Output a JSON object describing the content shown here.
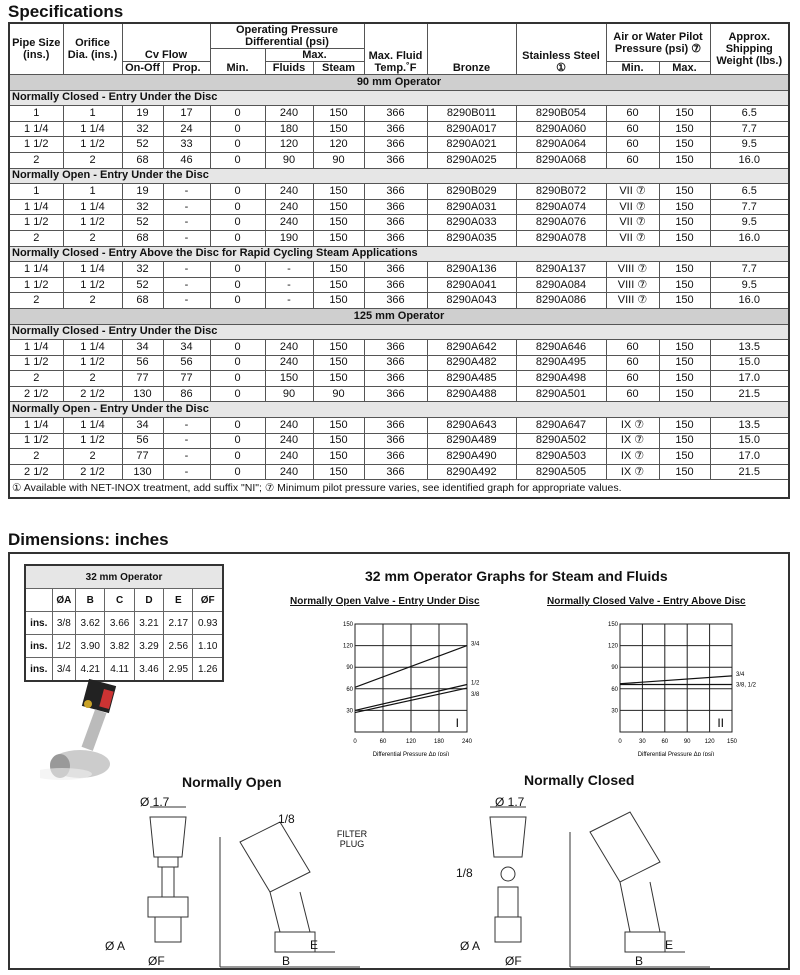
{
  "spec": {
    "title": "Specifications",
    "headers": {
      "pipe": "Pipe Size (ins.)",
      "orifice": "Orifice Dia. (ins.)",
      "cv": "Cv Flow",
      "onoff": "On-Off",
      "prop": "Prop.",
      "opd": "Operating Pressure Differential (psi)",
      "max": "Max.",
      "min": "Min.",
      "fluids": "Fluids",
      "steam": "Steam",
      "temp": "Max. Fluid Temp.˚F",
      "bronze": "Bronze",
      "ss": "Stainless Steel ①",
      "pilot": "Air or Water Pilot Pressure (psi) ⑦",
      "pmin": "Min.",
      "pmax": "Max.",
      "weight": "Approx. Shipping Weight (lbs.)"
    },
    "groups": [
      {
        "operator": "90 mm Operator",
        "section": "Normally Closed - Entry Under the Disc",
        "rows": [
          [
            "1",
            "1",
            "19",
            "17",
            "0",
            "240",
            "150",
            "366",
            "8290B011",
            "8290B054",
            "60",
            "150",
            "6.5"
          ],
          [
            "1 1/4",
            "1 1/4",
            "32",
            "24",
            "0",
            "180",
            "150",
            "366",
            "8290A017",
            "8290A060",
            "60",
            "150",
            "7.7"
          ],
          [
            "1 1/2",
            "1 1/2",
            "52",
            "33",
            "0",
            "120",
            "120",
            "366",
            "8290A021",
            "8290A064",
            "60",
            "150",
            "9.5"
          ],
          [
            "2",
            "2",
            "68",
            "46",
            "0",
            "90",
            "90",
            "366",
            "8290A025",
            "8290A068",
            "60",
            "150",
            "16.0"
          ]
        ]
      },
      {
        "section": "Normally Open - Entry Under the Disc",
        "rows": [
          [
            "1",
            "1",
            "19",
            "-",
            "0",
            "240",
            "150",
            "366",
            "8290B029",
            "8290B072",
            "VII ⑦",
            "150",
            "6.5"
          ],
          [
            "1 1/4",
            "1 1/4",
            "32",
            "-",
            "0",
            "240",
            "150",
            "366",
            "8290A031",
            "8290A074",
            "VII ⑦",
            "150",
            "7.7"
          ],
          [
            "1 1/2",
            "1 1/2",
            "52",
            "-",
            "0",
            "240",
            "150",
            "366",
            "8290A033",
            "8290A076",
            "VII ⑦",
            "150",
            "9.5"
          ],
          [
            "2",
            "2",
            "68",
            "-",
            "0",
            "190",
            "150",
            "366",
            "8290A035",
            "8290A078",
            "VII ⑦",
            "150",
            "16.0"
          ]
        ]
      },
      {
        "section": "Normally Closed - Entry Above the Disc for Rapid Cycling Steam Applications",
        "rows": [
          [
            "1 1/4",
            "1 1/4",
            "32",
            "-",
            "0",
            "-",
            "150",
            "366",
            "8290A136",
            "8290A137",
            "VIII ⑦",
            "150",
            "7.7"
          ],
          [
            "1 1/2",
            "1 1/2",
            "52",
            "-",
            "0",
            "-",
            "150",
            "366",
            "8290A041",
            "8290A084",
            "VIII ⑦",
            "150",
            "9.5"
          ],
          [
            "2",
            "2",
            "68",
            "-",
            "0",
            "-",
            "150",
            "366",
            "8290A043",
            "8290A086",
            "VIII ⑦",
            "150",
            "16.0"
          ]
        ]
      },
      {
        "operator": "125 mm Operator",
        "section": "Normally Closed - Entry Under the Disc",
        "rows": [
          [
            "1 1/4",
            "1 1/4",
            "34",
            "34",
            "0",
            "240",
            "150",
            "366",
            "8290A642",
            "8290A646",
            "60",
            "150",
            "13.5"
          ],
          [
            "1 1/2",
            "1 1/2",
            "56",
            "56",
            "0",
            "240",
            "150",
            "366",
            "8290A482",
            "8290A495",
            "60",
            "150",
            "15.0"
          ],
          [
            "2",
            "2",
            "77",
            "77",
            "0",
            "150",
            "150",
            "366",
            "8290A485",
            "8290A498",
            "60",
            "150",
            "17.0"
          ],
          [
            "2 1/2",
            "2 1/2",
            "130",
            "86",
            "0",
            "90",
            "90",
            "366",
            "8290A488",
            "8290A501",
            "60",
            "150",
            "21.5"
          ]
        ]
      },
      {
        "section": "Normally Open - Entry Under the Disc",
        "rows": [
          [
            "1 1/4",
            "1 1/4",
            "34",
            "-",
            "0",
            "240",
            "150",
            "366",
            "8290A643",
            "8290A647",
            "IX ⑦",
            "150",
            "13.5"
          ],
          [
            "1 1/2",
            "1 1/2",
            "56",
            "-",
            "0",
            "240",
            "150",
            "366",
            "8290A489",
            "8290A502",
            "IX ⑦",
            "150",
            "15.0"
          ],
          [
            "2",
            "2",
            "77",
            "-",
            "0",
            "240",
            "150",
            "366",
            "8290A490",
            "8290A503",
            "IX ⑦",
            "150",
            "17.0"
          ],
          [
            "2 1/2",
            "2 1/2",
            "130",
            "-",
            "0",
            "240",
            "150",
            "366",
            "8290A492",
            "8290A505",
            "IX ⑦",
            "150",
            "21.5"
          ]
        ]
      }
    ],
    "footnote": "① Available with NET-INOX treatment, add suffix \"NI\"; ⑦ Minimum pilot pressure varies, see identified graph for appropriate values."
  },
  "dimensions": {
    "title": "Dimensions: inches",
    "table": {
      "operator": "32 mm Operator",
      "cols": [
        "ØA",
        "B",
        "C",
        "D",
        "E",
        "ØF"
      ],
      "rows": [
        [
          "ins.",
          "3/8",
          "3.62",
          "3.66",
          "3.21",
          "2.17",
          "0.93"
        ],
        [
          "ins.",
          "1/2",
          "3.90",
          "3.82",
          "3.29",
          "2.56",
          "1.10"
        ],
        [
          "ins.",
          "3/4",
          "4.21",
          "4.11",
          "3.46",
          "2.95",
          "1.26"
        ]
      ]
    },
    "graphs_title": "32 mm Operator Graphs for Steam and Fluids",
    "normally_open_label": "Normally Open",
    "normally_closed_label": "Normally Closed",
    "drawing_labels": {
      "f17": "Ø 1.7",
      "eighth": "1/8",
      "filter": "FILTER PLUG",
      "a": "Ø A",
      "f": "ØF",
      "b": "B",
      "e": "E"
    }
  },
  "chart_data": [
    {
      "type": "line",
      "title": "Normally Open Valve - Entry Under Disc",
      "xlabel": "Differential Pressure Δp (psi)",
      "ylabel": "",
      "xlim": [
        0,
        240
      ],
      "ylim": [
        0,
        150
      ],
      "xticks": [
        0,
        60,
        120,
        180,
        240
      ],
      "yticks": [
        30,
        60,
        90,
        120,
        150
      ],
      "grid": true,
      "annotation": "I",
      "series": [
        {
          "name": "3/4",
          "x": [
            0,
            240
          ],
          "y": [
            62,
            120
          ]
        },
        {
          "name": "1/2",
          "x": [
            0,
            240
          ],
          "y": [
            30,
            66
          ]
        },
        {
          "name": "3/8",
          "x": [
            0,
            240
          ],
          "y": [
            27,
            61
          ]
        }
      ]
    },
    {
      "type": "line",
      "title": "Normally Closed Valve - Entry Above Disc",
      "xlabel": "Differential Pressure Δp (psi)",
      "ylabel": "",
      "xlim": [
        0,
        150
      ],
      "ylim": [
        0,
        150
      ],
      "xticks": [
        0,
        30,
        60,
        90,
        120,
        150
      ],
      "yticks": [
        30,
        60,
        90,
        120,
        150
      ],
      "grid": true,
      "annotation": "II",
      "series": [
        {
          "name": "3/4",
          "x": [
            0,
            150
          ],
          "y": [
            67,
            78
          ]
        },
        {
          "name": "3/8, 1/2",
          "x": [
            0,
            150
          ],
          "y": [
            66,
            66
          ]
        }
      ]
    }
  ]
}
